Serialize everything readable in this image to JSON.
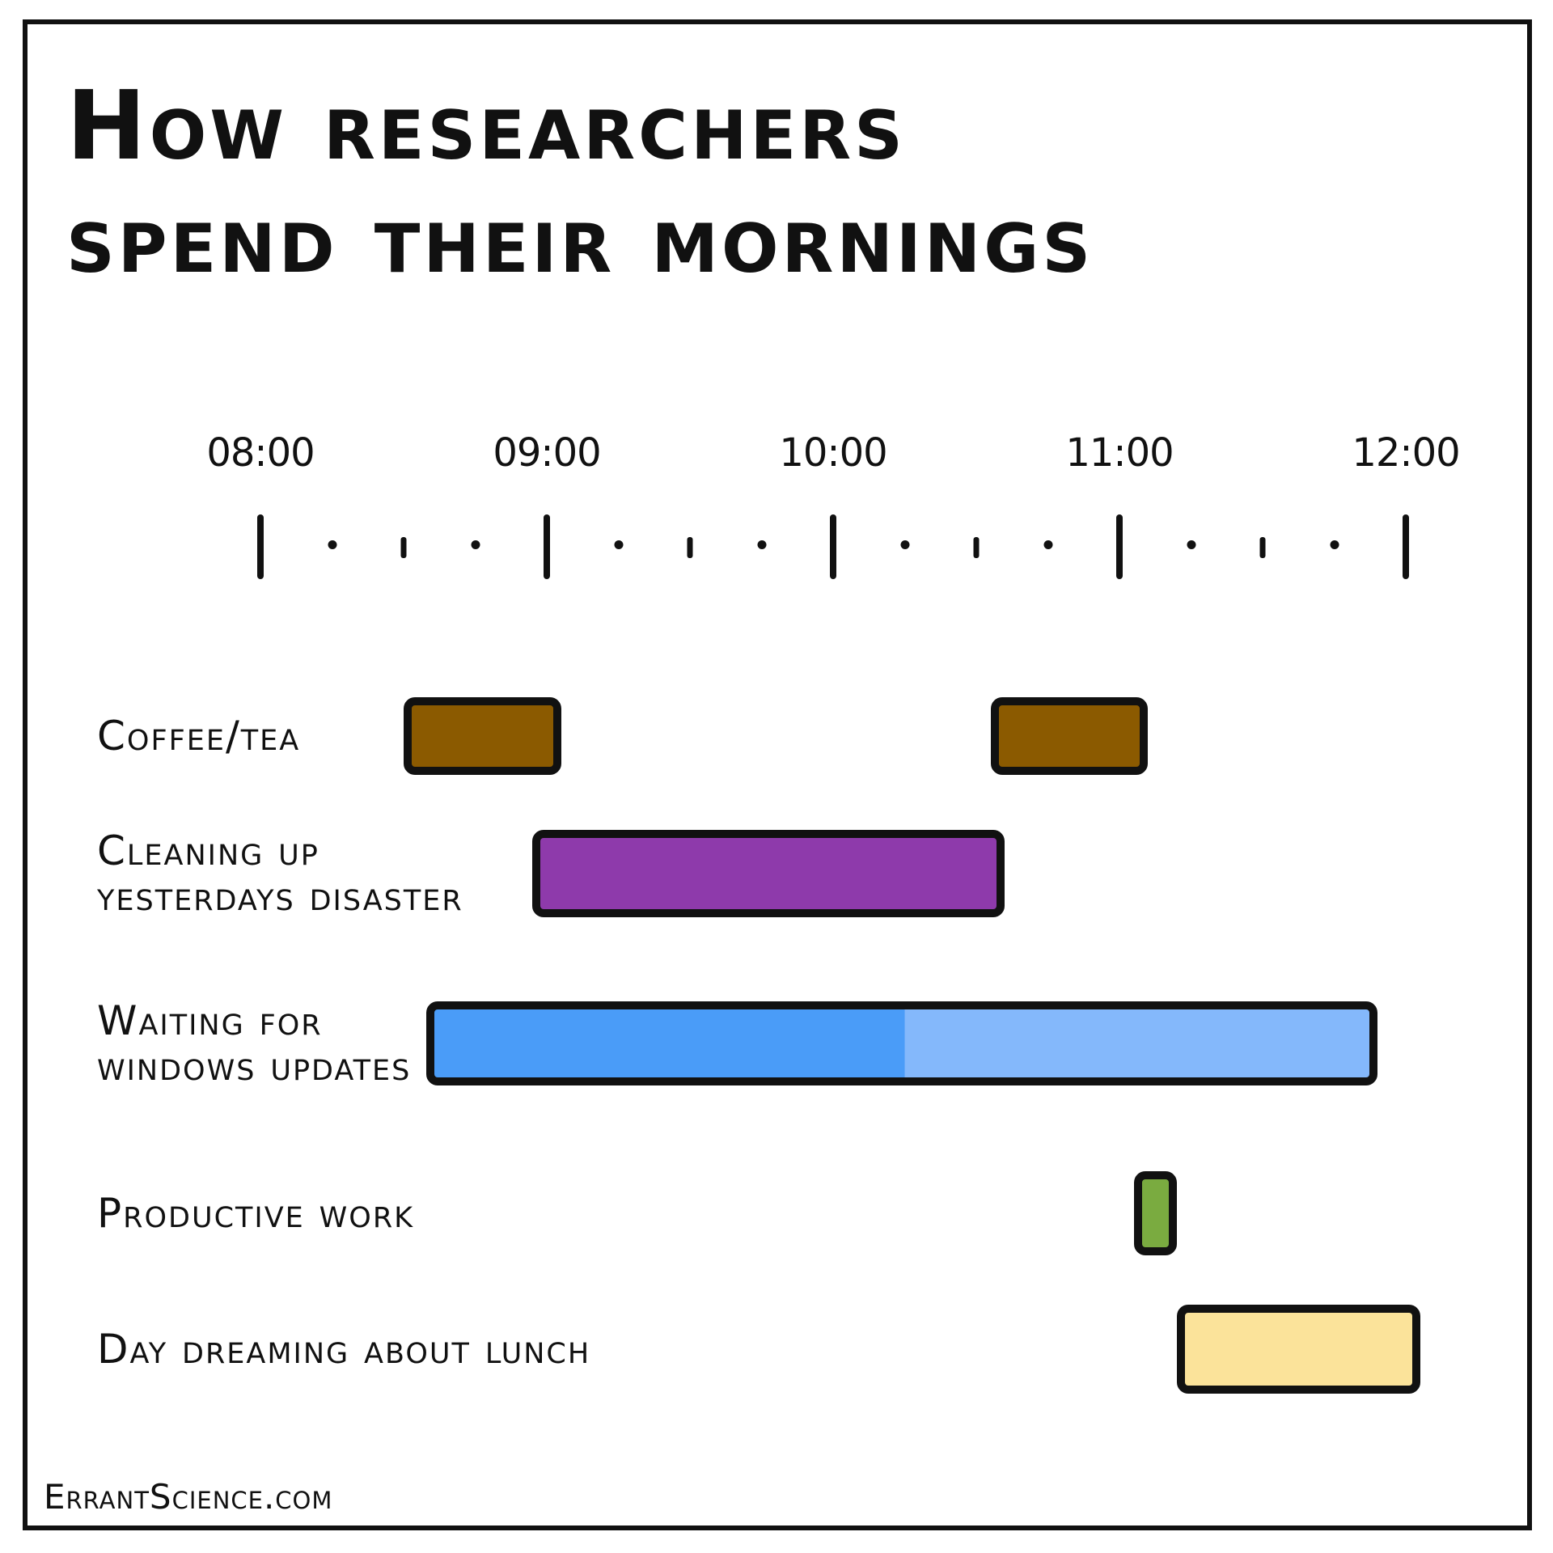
{
  "chart_data": {
    "type": "gantt",
    "title_lines": [
      "How researchers",
      "spend their mornings"
    ],
    "time_axis": {
      "ticks": [
        {
          "label": "08:00",
          "hour": 8
        },
        {
          "label": "09:00",
          "hour": 9
        },
        {
          "label": "10:00",
          "hour": 10
        },
        {
          "label": "11:00",
          "hour": 11
        },
        {
          "label": "12:00",
          "hour": 12
        }
      ],
      "range": [
        8,
        12
      ],
      "minor_ticks_per_hour": 3
    },
    "rows": [
      {
        "label_lines": [
          "Coffee/tea"
        ],
        "color": "#8b5a00",
        "intervals": [
          {
            "start": 8.5,
            "end": 9.05
          },
          {
            "start": 10.55,
            "end": 11.1
          }
        ]
      },
      {
        "label_lines": [
          "Cleaning up",
          "yesterdays disaster"
        ],
        "color": "#8e3aab",
        "intervals": [
          {
            "start": 8.95,
            "end": 10.6
          }
        ]
      },
      {
        "label_lines": [
          "Waiting for",
          "windows updates"
        ],
        "color": "#4a9cf8",
        "color_secondary": "#84b8fb",
        "intervals": [
          {
            "start": 8.58,
            "end": 11.9
          }
        ],
        "split_at": 10.25
      },
      {
        "label_lines": [
          "Productive work"
        ],
        "color": "#7aab40",
        "intervals": [
          {
            "start": 11.05,
            "end": 11.2
          }
        ]
      },
      {
        "label_lines": [
          "Day dreaming about lunch"
        ],
        "color": "#fbe39a",
        "intervals": [
          {
            "start": 11.2,
            "end": 12.05
          }
        ]
      }
    ]
  },
  "footer": "ErrantScience.com"
}
